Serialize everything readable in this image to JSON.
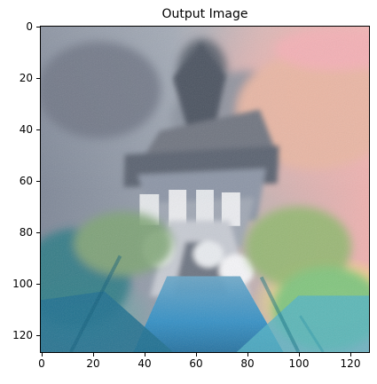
{
  "plot": {
    "title": "Output Image",
    "y_ticks": [
      0,
      20,
      40,
      60,
      80,
      100,
      120
    ],
    "x_ticks": [
      0,
      20,
      40,
      60,
      80,
      100,
      120
    ]
  },
  "image": {
    "description": "",
    "palette": {
      "sky_gray": "#8f95a4",
      "sky_warm_peach": "#efc2b1",
      "sky_pink": "#f0a9ad",
      "foliage_green": "#83aa79",
      "foliage_yellow": "#f2e58b",
      "water_blue": "#2a8fc7",
      "shadow_dark": "#404a57",
      "highlight_white": "#f5f5f7"
    }
  }
}
